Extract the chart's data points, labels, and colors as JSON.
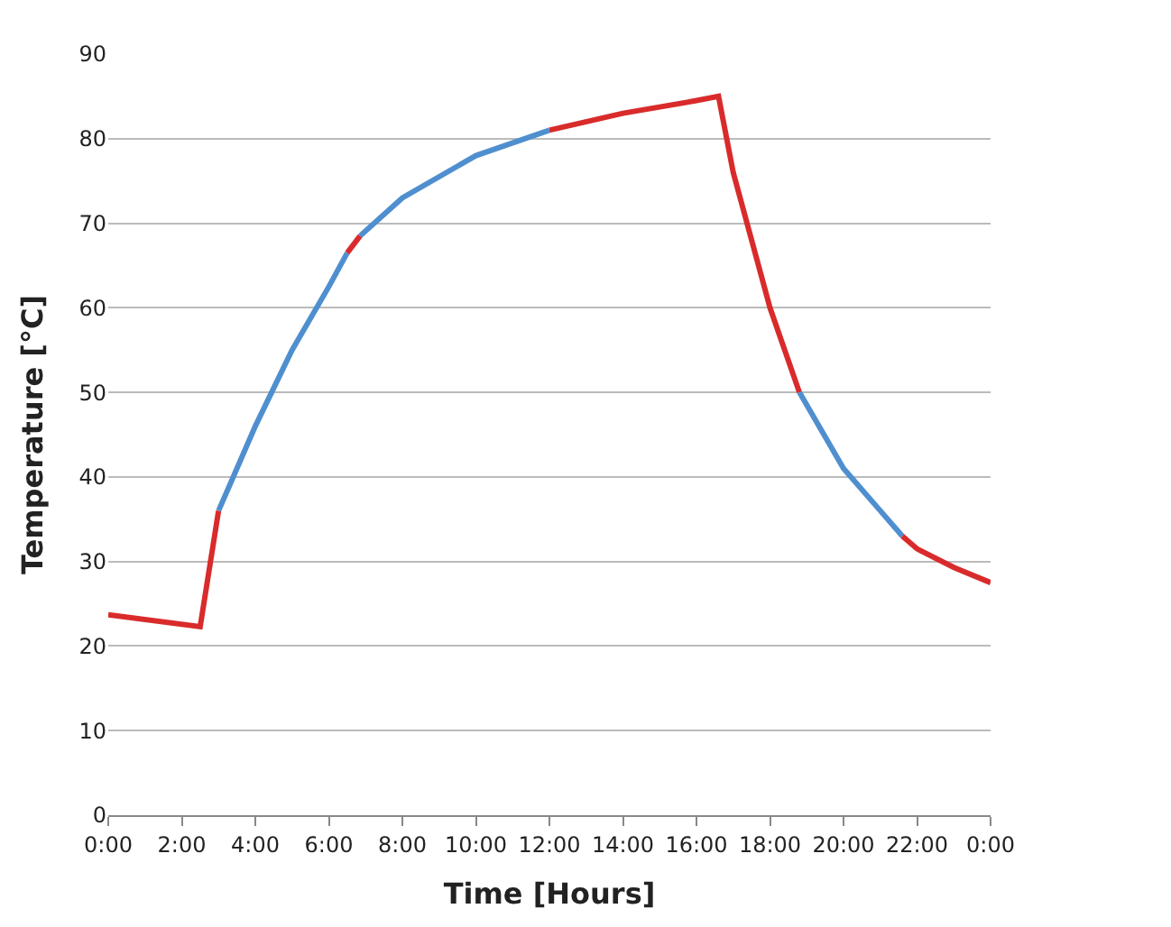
{
  "chart_data": {
    "type": "line",
    "xlabel": "Time [Hours]",
    "ylabel": "Temperature [°C]",
    "xlim": [
      0,
      24
    ],
    "ylim": [
      0,
      90
    ],
    "xticks": [
      {
        "value": 0,
        "label": "0:00"
      },
      {
        "value": 2,
        "label": "2:00"
      },
      {
        "value": 4,
        "label": "4:00"
      },
      {
        "value": 6,
        "label": "6:00"
      },
      {
        "value": 8,
        "label": "8:00"
      },
      {
        "value": 10,
        "label": "10:00"
      },
      {
        "value": 12,
        "label": "12:00"
      },
      {
        "value": 14,
        "label": "14:00"
      },
      {
        "value": 16,
        "label": "16:00"
      },
      {
        "value": 18,
        "label": "18:00"
      },
      {
        "value": 20,
        "label": "20:00"
      },
      {
        "value": 22,
        "label": "22:00"
      },
      {
        "value": 24,
        "label": "0:00"
      }
    ],
    "yticks": [
      0,
      10,
      20,
      30,
      40,
      50,
      60,
      70,
      80,
      90
    ],
    "grid": "y",
    "marker": "none",
    "line_style": "solid",
    "series": [
      {
        "color": "#d92b2b",
        "x": [
          0,
          2.5,
          3.0
        ],
        "values": [
          23.7,
          22.3,
          36
        ]
      },
      {
        "color": "#4f8fcf",
        "x": [
          3.0,
          3.5,
          4,
          5,
          6,
          6.5
        ],
        "values": [
          36,
          41,
          46,
          55,
          62.5,
          66.5
        ]
      },
      {
        "color": "#d92b2b",
        "x": [
          6.5,
          6.85
        ],
        "values": [
          66.5,
          68.5
        ]
      },
      {
        "color": "#4f8fcf",
        "x": [
          6.85,
          8,
          10,
          12
        ],
        "values": [
          68.5,
          73,
          78,
          81
        ]
      },
      {
        "color": "#d92b2b",
        "x": [
          12,
          14,
          16,
          16.6,
          17,
          18,
          18.8
        ],
        "values": [
          81,
          83,
          84.5,
          85,
          76,
          60,
          50
        ]
      },
      {
        "color": "#4f8fcf",
        "x": [
          18.8,
          20,
          21,
          21.6
        ],
        "values": [
          50,
          41,
          36,
          33
        ]
      },
      {
        "color": "#d92b2b",
        "x": [
          21.6,
          22,
          23,
          24
        ],
        "values": [
          33,
          31.5,
          29.3,
          27.5
        ]
      }
    ]
  }
}
